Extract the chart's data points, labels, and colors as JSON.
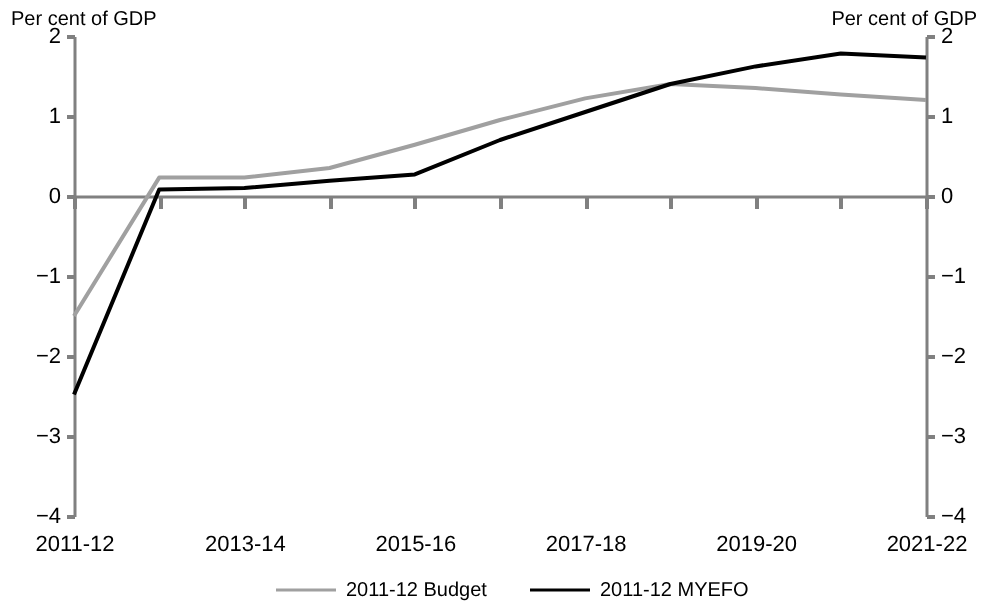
{
  "chart_data": {
    "type": "line",
    "categories": [
      "2011-12",
      null,
      "2013-14",
      null,
      "2015-16",
      null,
      "2017-18",
      null,
      "2019-20",
      null,
      "2021-22"
    ],
    "series": [
      {
        "name": "2011-12 Budget",
        "color": "#a0a0a0",
        "values": [
          -1.5,
          0.23,
          0.23,
          0.35,
          0.64,
          0.95,
          1.22,
          1.4,
          1.35,
          1.27,
          1.2
        ]
      },
      {
        "name": "2011-12 MYEFO",
        "color": "#000000",
        "values": [
          -2.48,
          0.08,
          0.1,
          0.19,
          0.27,
          0.7,
          1.05,
          1.4,
          1.62,
          1.78,
          1.73
        ]
      }
    ],
    "ylabel": "Per cent of GDP",
    "y2label": "Per cent of GDP",
    "ylim": [
      -4,
      2
    ],
    "yticks": [
      -4,
      -3,
      -2,
      -1,
      0,
      1,
      2
    ],
    "y2lim": [
      -4,
      2
    ],
    "y2ticks": [
      -4,
      -3,
      -2,
      -1,
      0,
      1,
      2
    ],
    "legend": "bottom",
    "marker": "none",
    "line_style": "solid"
  }
}
